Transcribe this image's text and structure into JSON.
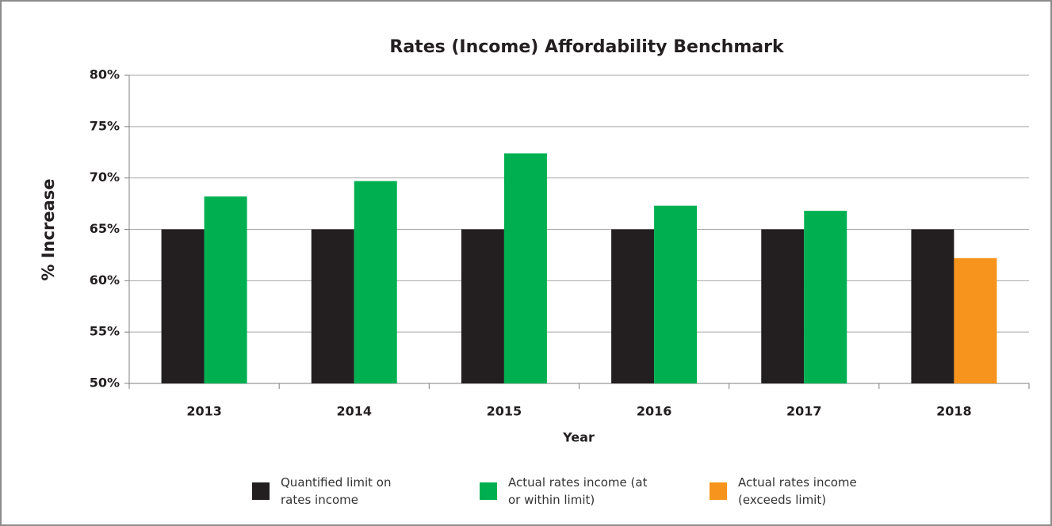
{
  "chart_data": {
    "type": "bar",
    "title": "Rates (Income) Affordability Benchmark",
    "x_label": "Year",
    "y_label": "% Increase",
    "categories": [
      "2013",
      "2014",
      "2015",
      "2016",
      "2017",
      "2018"
    ],
    "series": [
      {
        "name": "Quantified limit on rates income",
        "color": "#231f20",
        "values": [
          65,
          65,
          65,
          65,
          65,
          65
        ]
      },
      {
        "name": "Actual rates income (at or within limit)",
        "color": "#00b050",
        "values": [
          68.2,
          69.7,
          72.4,
          67.3,
          66.8,
          null
        ]
      },
      {
        "name": "Actual rates income (exceeds limit)",
        "color": "#f7941d",
        "values": [
          null,
          null,
          null,
          null,
          null,
          62.2
        ]
      }
    ],
    "ylim": [
      50,
      80
    ],
    "yticks": [
      {
        "value": 50,
        "label": "50%"
      },
      {
        "value": 55,
        "label": "55%"
      },
      {
        "value": 60,
        "label": "60%"
      },
      {
        "value": 65,
        "label": "65%"
      },
      {
        "value": 70,
        "label": "70%"
      },
      {
        "value": 75,
        "label": "75%"
      },
      {
        "value": 80,
        "label": "80%"
      }
    ],
    "grid": true,
    "legend": "bottom"
  }
}
